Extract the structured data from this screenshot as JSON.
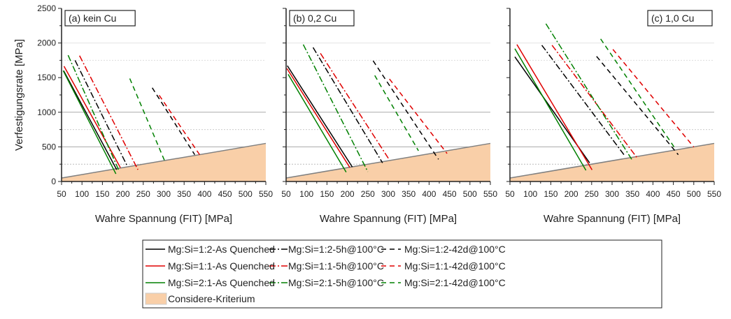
{
  "chart_data": {
    "type": "line",
    "ylabel": "Verfestigungsrate [MPa]",
    "xlabel": "Wahre Spannung (FIT) [MPa]",
    "xlim": [
      50,
      550
    ],
    "ylim": [
      0,
      2500
    ],
    "xticks": [
      50,
      100,
      150,
      200,
      250,
      300,
      350,
      400,
      450,
      500,
      550
    ],
    "yticks": [
      0,
      500,
      1000,
      1500,
      2000,
      2500
    ],
    "grid": true,
    "legend_placement": "bottom",
    "colors": {
      "1:2": "#000000",
      "1:1": "#e00000",
      "2:1": "#008000",
      "considere_fill": "#f9cfa8",
      "considere_line": "#808080"
    },
    "series_styles": {
      "As Quenched": "solid",
      "5h@100°C": "dashdot",
      "42d@100°C": "dashed"
    },
    "legend": [
      {
        "name": "Mg:Si=1:2-As Quenched",
        "color": "#000000",
        "style": "solid"
      },
      {
        "name": "Mg:Si=1:2-5h@100°C",
        "color": "#000000",
        "style": "dashdot"
      },
      {
        "name": "Mg:Si=1:2-42d@100°C",
        "color": "#000000",
        "style": "dashed"
      },
      {
        "name": "Mg:Si=1:1-As Quenched",
        "color": "#e00000",
        "style": "solid"
      },
      {
        "name": "Mg:Si=1:1-5h@100°C",
        "color": "#e00000",
        "style": "dashdot"
      },
      {
        "name": "Mg:Si=1:1-42d@100°C",
        "color": "#e00000",
        "style": "dashed"
      },
      {
        "name": "Mg:Si=2:1-As Quenched",
        "color": "#008000",
        "style": "solid"
      },
      {
        "name": "Mg:Si=2:1-5h@100°C",
        "color": "#008000",
        "style": "dashdot"
      },
      {
        "name": "Mg:Si=2:1-42d@100°C",
        "color": "#008000",
        "style": "dashed"
      },
      {
        "name": "Considere-Kriterium",
        "color": "#f9cfa8",
        "style": "area"
      }
    ],
    "considere": {
      "x": [
        50,
        550
      ],
      "y": [
        50,
        550
      ]
    },
    "panels": [
      {
        "title": "(a) kein Cu",
        "series": [
          {
            "name": "Mg:Si=1:2-As Quenched",
            "x": [
              55,
              185
            ],
            "y": [
              1600,
              170
            ]
          },
          {
            "name": "Mg:Si=1:1-As Quenched",
            "x": [
              56,
              194
            ],
            "y": [
              1665,
              200
            ]
          },
          {
            "name": "Mg:Si=2:1-As Quenched",
            "x": [
              54,
              183
            ],
            "y": [
              1600,
              110
            ]
          },
          {
            "name": "Mg:Si=1:2-5h@100°C",
            "x": [
              83,
              211
            ],
            "y": [
              1750,
              220
            ]
          },
          {
            "name": "Mg:Si=1:1-5h@100°C",
            "x": [
              94,
              237
            ],
            "y": [
              1817,
              170
            ]
          },
          {
            "name": "Mg:Si=2:1-5h@100°C",
            "x": [
              66,
              191
            ],
            "y": [
              1824,
              150
            ]
          },
          {
            "name": "Mg:Si=1:2-42d@100°C",
            "x": [
              272,
              376
            ],
            "y": [
              1353,
              387
            ]
          },
          {
            "name": "Mg:Si=1:1-42d@100°C",
            "x": [
              289,
              388
            ],
            "y": [
              1245,
              387
            ]
          },
          {
            "name": "Mg:Si=2:1-42d@100°C",
            "x": [
              217,
              302
            ],
            "y": [
              1487,
              303
            ]
          }
        ]
      },
      {
        "title": "(b) 0,2 Cu",
        "series": [
          {
            "name": "Mg:Si=1:2-As Quenched",
            "x": [
              53,
              212
            ],
            "y": [
              1672,
              209
            ]
          },
          {
            "name": "Mg:Si=1:1-As Quenched",
            "x": [
              52,
              206
            ],
            "y": [
              1632,
              202
            ]
          },
          {
            "name": "Mg:Si=2:1-As Quenched",
            "x": [
              55,
              197
            ],
            "y": [
              1548,
              135
            ]
          },
          {
            "name": "Mg:Si=1:2-5h@100°C",
            "x": [
              116,
              286
            ],
            "y": [
              1935,
              269
            ]
          },
          {
            "name": "Mg:Si=1:1-5h@100°C",
            "x": [
              134,
              303
            ],
            "y": [
              1851,
              310
            ]
          },
          {
            "name": "Mg:Si=2:1-5h@100°C",
            "x": [
              92,
              250
            ],
            "y": [
              1978,
              141
            ]
          },
          {
            "name": "Mg:Si=1:2-42d@100°C",
            "x": [
              263,
              423
            ],
            "y": [
              1743,
              320
            ]
          },
          {
            "name": "Mg:Si=1:1-42d@100°C",
            "x": [
              303,
              444
            ],
            "y": [
              1480,
              404
            ]
          },
          {
            "name": "Mg:Si=2:1-42d@100°C",
            "x": [
              267,
              374
            ],
            "y": [
              1531,
              444
            ]
          }
        ]
      },
      {
        "title": "(c) 1,0 Cu",
        "series": [
          {
            "name": "Mg:Si=1:2-As Quenched",
            "x": [
              62,
              245
            ],
            "y": [
              1800,
              269
            ]
          },
          {
            "name": "Mg:Si=1:1-As Quenched",
            "x": [
              67,
              251
            ],
            "y": [
              1978,
              168
            ]
          },
          {
            "name": "Mg:Si=2:1-As Quenched",
            "x": [
              62,
              236
            ],
            "y": [
              1918,
              161
            ]
          },
          {
            "name": "Mg:Si=1:2-5h@100°C",
            "x": [
              128,
              329
            ],
            "y": [
              1968,
              387
            ]
          },
          {
            "name": "Mg:Si=1:1-5h@100°C",
            "x": [
              153,
              362
            ],
            "y": [
              1968,
              336
            ]
          },
          {
            "name": "Mg:Si=2:1-5h@100°C",
            "x": [
              138,
              348
            ],
            "y": [
              2278,
              320
            ]
          },
          {
            "name": "Mg:Si=1:2-42d@100°C",
            "x": [
              262,
              462
            ],
            "y": [
              1807,
              387
            ]
          },
          {
            "name": "Mg:Si=1:1-42d@100°C",
            "x": [
              302,
              500
            ],
            "y": [
              1908,
              498
            ]
          },
          {
            "name": "Mg:Si=2:1-42d@100°C",
            "x": [
              272,
              453
            ],
            "y": [
              2059,
              488
            ]
          }
        ]
      }
    ]
  }
}
